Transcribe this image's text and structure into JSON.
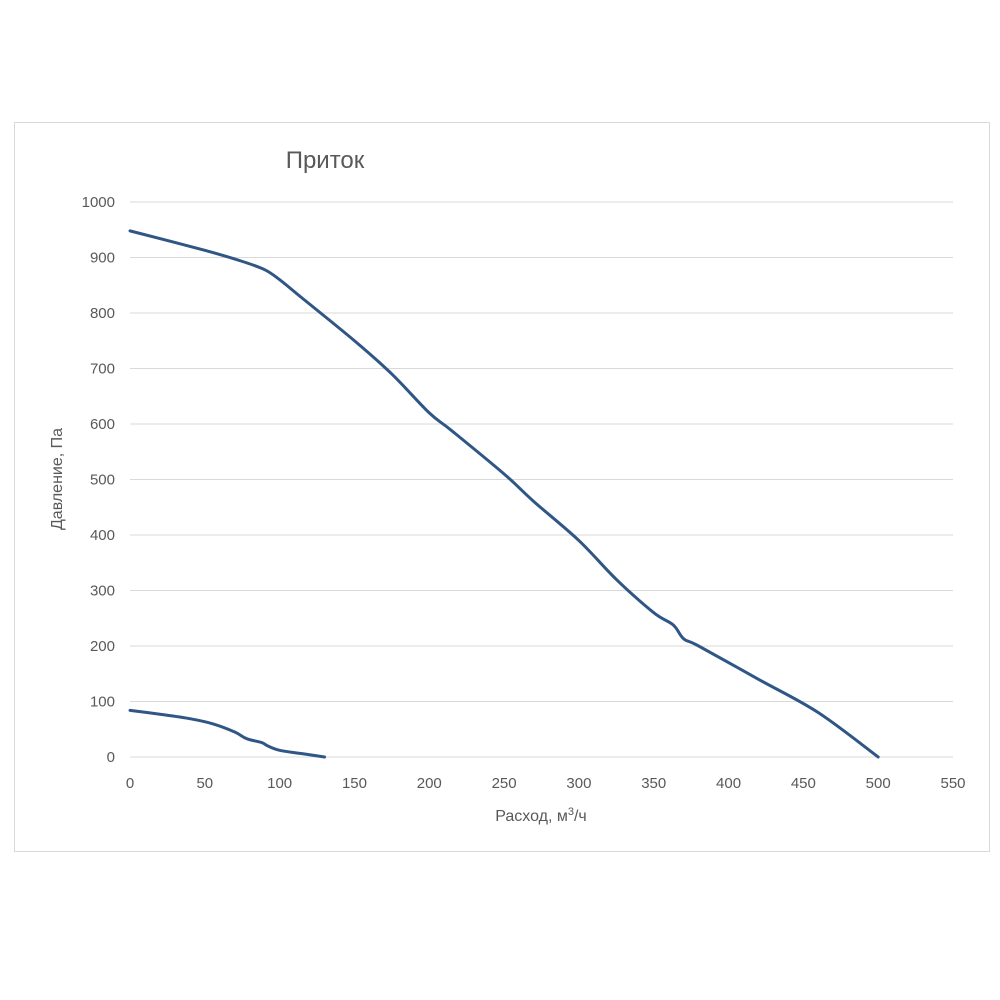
{
  "chart_data": {
    "type": "line",
    "title": "Приток",
    "xlabel": "Расход, м",
    "xlabel_sup": "3",
    "xlabel_suffix": "/ч",
    "ylabel": "Давление, Па",
    "xlim": [
      0,
      550
    ],
    "ylim": [
      0,
      1000
    ],
    "x_ticks": [
      "0",
      "50",
      "100",
      "150",
      "200",
      "250",
      "300",
      "350",
      "400",
      "450",
      "500",
      "550"
    ],
    "y_ticks": [
      "0",
      "100",
      "200",
      "300",
      "400",
      "500",
      "600",
      "700",
      "800",
      "900",
      "1000"
    ],
    "grid": true,
    "legend": "none",
    "series": [
      {
        "color": "#2f5685",
        "points": [
          [
            0,
            948
          ],
          [
            50,
            913
          ],
          [
            75,
            893
          ],
          [
            90,
            878
          ],
          [
            100,
            860
          ],
          [
            115,
            827
          ],
          [
            150,
            750
          ],
          [
            175,
            690
          ],
          [
            200,
            620
          ],
          [
            215,
            588
          ],
          [
            250,
            510
          ],
          [
            270,
            460
          ],
          [
            300,
            390
          ],
          [
            325,
            320
          ],
          [
            350,
            260
          ],
          [
            363,
            238
          ],
          [
            370,
            213
          ],
          [
            380,
            200
          ],
          [
            420,
            140
          ],
          [
            460,
            80
          ],
          [
            500,
            0
          ]
        ]
      },
      {
        "color": "#2f5685",
        "points": [
          [
            0,
            84
          ],
          [
            20,
            77
          ],
          [
            40,
            69
          ],
          [
            55,
            60
          ],
          [
            70,
            45
          ],
          [
            78,
            33
          ],
          [
            88,
            26
          ],
          [
            92,
            20
          ],
          [
            100,
            12
          ],
          [
            115,
            6
          ],
          [
            130,
            0
          ]
        ]
      }
    ]
  },
  "colors": {
    "line": "#2f5685",
    "grid": "#d9d9d9",
    "text": "#595959"
  }
}
